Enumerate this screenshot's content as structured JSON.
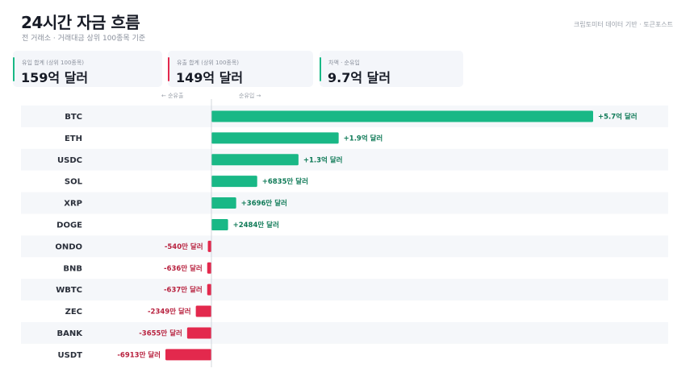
{
  "header": {
    "title": "24시간 자금 흐름",
    "subtitle": "전 거래소 · 거래대금 상위 100종목 기준",
    "source": "크립토미터 데이터 기반 · 토큰포스트"
  },
  "cards": [
    {
      "label": "유입 합계 (상위 100종목)",
      "value": "159억 달러",
      "accent": "#19b886"
    },
    {
      "label": "유출 합계 (상위 100종목)",
      "value": "149억 달러",
      "accent": "#e3294d"
    },
    {
      "label": "차액 · 순유입",
      "value": "9.7억 달러",
      "accent": "#19b886"
    }
  ],
  "direction": {
    "outflow": "← 순유출",
    "inflow": "순유입 →"
  },
  "colors": {
    "inflow": "#19b886",
    "outflow": "#e3294d",
    "inflow_text": "#0f7a57",
    "outflow_text": "#b8223f",
    "row_band": "#f5f7fa"
  },
  "chart_data": {
    "type": "bar",
    "orientation": "horizontal",
    "unit": "만 달러",
    "categories": [
      "BTC",
      "ETH",
      "USDC",
      "SOL",
      "XRP",
      "DOGE",
      "ONDO",
      "BNB",
      "WBTC",
      "ZEC",
      "BANK",
      "USDT"
    ],
    "values": [
      57000,
      19000,
      13000,
      6835,
      3696,
      2484,
      -540,
      -636,
      -637,
      -2349,
      -3655,
      -6913
    ],
    "data_labels": [
      "+5.7억 달러",
      "+1.9억 달러",
      "+1.3억 달러",
      "+6835만 달러",
      "+3696만 달러",
      "+2484만 달러",
      "-540만 달러",
      "-636만 달러",
      "-637만 달러",
      "-2349만 달러",
      "-3655만 달러",
      "-6913만 달러"
    ]
  }
}
